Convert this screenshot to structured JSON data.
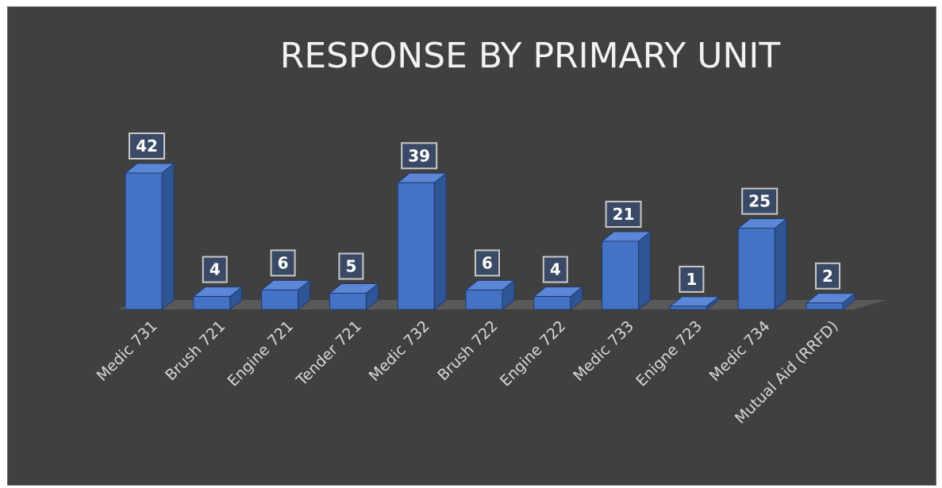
{
  "chart_data": {
    "type": "bar",
    "title": "RESPONSE BY PRIMARY UNIT",
    "categories": [
      "Medic 731",
      "Brush 721",
      "Engine 721",
      "Tender 721",
      "Medic 732",
      "Brush 722",
      "Engine 722",
      "Medic 733",
      "Enigne 723",
      "Medic 734",
      "Mutual Aid (RRFD)"
    ],
    "values": [
      42,
      4,
      6,
      5,
      39,
      6,
      4,
      21,
      1,
      25,
      2
    ],
    "xlabel": "",
    "ylabel": "",
    "ylim": [
      0,
      42
    ],
    "grid": false,
    "legend": "none",
    "data_labels": true,
    "colors": {
      "background": "#404040",
      "bar_front": "#4472c4",
      "bar_side": "#2f5597",
      "bar_top": "#5b87d6",
      "bar_edge": "#1f3a6e",
      "floor": "#595959",
      "label_box": "#3a4a66",
      "label_border": "#c9c9c9",
      "title": "#f2f2f2",
      "axis_text": "#d9d9d9"
    }
  }
}
